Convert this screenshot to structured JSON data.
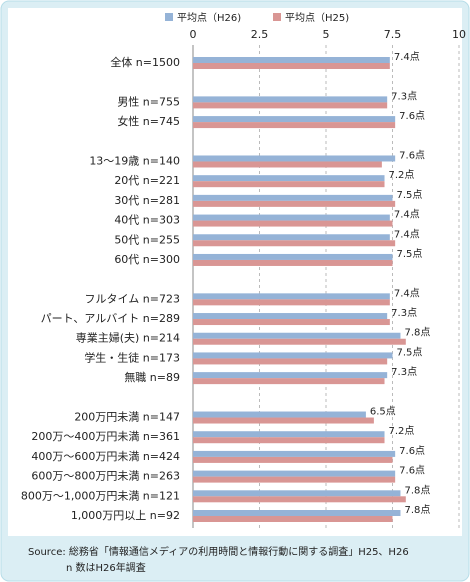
{
  "chart_data": {
    "type": "bar",
    "orientation": "horizontal",
    "categories": [
      "全体 n=1500",
      null,
      "男性 n=755",
      "女性 n=745",
      null,
      "13～19歳 n=140",
      "20代 n=221",
      "30代 n=281",
      "40代 n=303",
      "50代 n=255",
      "60代 n=300",
      null,
      "フルタイム n=723",
      "パート、アルバイト n=289",
      "専業主婦(夫) n=214",
      "学生・生徒 n=173",
      "無職 n=89",
      null,
      "200万円未満 n=147",
      "200万～400万円未満 n=361",
      "400万～600万円未満 n=424",
      "600万～800万円未満 n=263",
      "800万～1,000万円未満 n=121",
      "1,000万円以上 n=92"
    ],
    "series": [
      {
        "name": "平均点（H26)",
        "color": "#95b3d7",
        "values": [
          7.4,
          null,
          7.3,
          7.6,
          null,
          7.6,
          7.2,
          7.5,
          7.4,
          7.4,
          7.5,
          null,
          7.4,
          7.3,
          7.8,
          7.5,
          7.3,
          null,
          6.5,
          7.2,
          7.6,
          7.6,
          7.8,
          7.8
        ],
        "value_labels": [
          "7.4点",
          null,
          "7.3点",
          "7.6点",
          null,
          "7.6点",
          "7.2点",
          "7.5点",
          "7.4点",
          "7.4点",
          "7.5点",
          null,
          "7.4点",
          "7.3点",
          "7.8点",
          "7.5点",
          "7.3点",
          null,
          "6.5点",
          "7.2点",
          "7.6点",
          "7.6点",
          "7.8点",
          "7.8点"
        ]
      },
      {
        "name": "平均点（H25)",
        "color": "#d99694",
        "values": [
          7.4,
          null,
          7.3,
          7.6,
          null,
          7.1,
          7.2,
          7.6,
          7.5,
          7.6,
          7.5,
          null,
          7.4,
          7.4,
          8.0,
          7.3,
          7.2,
          null,
          6.8,
          7.2,
          7.5,
          7.6,
          8.0,
          7.5
        ]
      }
    ],
    "xlim": [
      0,
      10
    ],
    "xticks": [
      0,
      2.5,
      5,
      7.5,
      10
    ],
    "grid": true,
    "legend": "top",
    "source": "Source: 総務省「情報通信メディアの利用時間と情報行動に関する調査」H25、H26",
    "note": "n 数はH26年調査"
  }
}
